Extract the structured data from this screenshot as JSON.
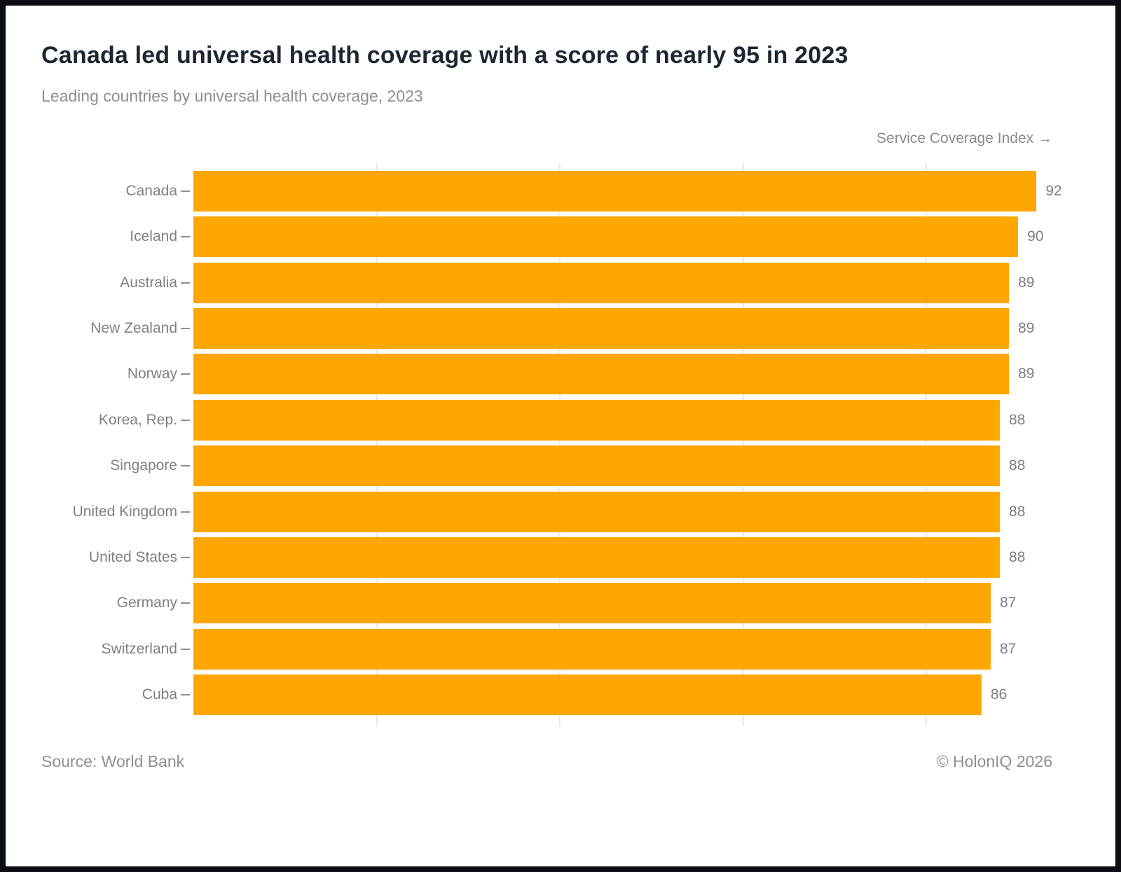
{
  "header": {
    "title": "Canada led universal health coverage with a score of nearly 95 in 2023",
    "subtitle": "Leading countries by universal health coverage, 2023"
  },
  "chart_data": {
    "type": "bar",
    "orientation": "horizontal",
    "title": "Canada led universal health coverage with a score of nearly 95 in 2023",
    "subtitle": "Leading countries by universal health coverage, 2023",
    "axis_title": "Service Coverage Index →",
    "categories": [
      "Canada",
      "Iceland",
      "Australia",
      "New Zealand",
      "Norway",
      "Korea, Rep.",
      "Singapore",
      "United Kingdom",
      "United States",
      "Germany",
      "Switzerland",
      "Cuba"
    ],
    "values": [
      92,
      90,
      89,
      89,
      89,
      88,
      88,
      88,
      88,
      87,
      87,
      86
    ],
    "xlim": [
      0,
      95
    ],
    "gridlines_x": [
      20,
      40,
      60,
      80
    ],
    "grid": true,
    "legend": "none",
    "bar_color": "#ffa600",
    "gridline_color": "#e9e9e9",
    "label_color": "#808080",
    "value_color": "#7e7e7e",
    "title_color": "#1d2733"
  },
  "footer": {
    "source": "Source: World Bank",
    "copyright": "© HolonIQ 2026"
  }
}
